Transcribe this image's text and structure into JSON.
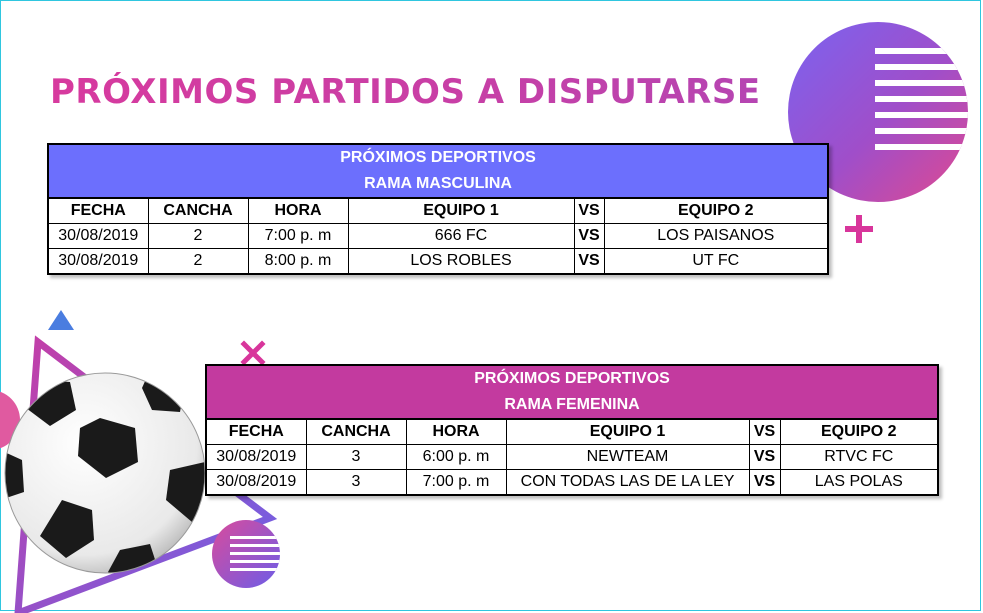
{
  "title": "PRÓXIMOS PARTIDOS A DISPUTARSE",
  "colors": {
    "title": "#d8359b",
    "male_banner": "#6c6ffd",
    "female_banner": "#c33a9f",
    "frame_border": "#2fc6df"
  },
  "tables": [
    {
      "banner_line1": "PRÓXIMOS DEPORTIVOS",
      "banner_line2": "RAMA MASCULINA",
      "columns": [
        "FECHA",
        "CANCHA",
        "HORA",
        "EQUIPO 1",
        "VS",
        "EQUIPO 2"
      ],
      "rows": [
        [
          "30/08/2019",
          "2",
          "7:00 p. m",
          "666 FC",
          "VS",
          "LOS PAISANOS"
        ],
        [
          "30/08/2019",
          "2",
          "8:00 p. m",
          "LOS ROBLES",
          "VS",
          "UT FC"
        ]
      ]
    },
    {
      "banner_line1": "PRÓXIMOS DEPORTIVOS",
      "banner_line2": "RAMA FEMENINA",
      "columns": [
        "FECHA",
        "CANCHA",
        "HORA",
        "EQUIPO 1",
        "VS",
        "EQUIPO 2"
      ],
      "rows": [
        [
          "30/08/2019",
          "3",
          "6:00 p. m",
          "NEWTEAM",
          "VS",
          "RTVC FC"
        ],
        [
          "30/08/2019",
          "3",
          "7:00 p. m",
          "CON TODAS LAS DE LA LEY",
          "VS",
          "LAS POLAS"
        ]
      ]
    }
  ]
}
